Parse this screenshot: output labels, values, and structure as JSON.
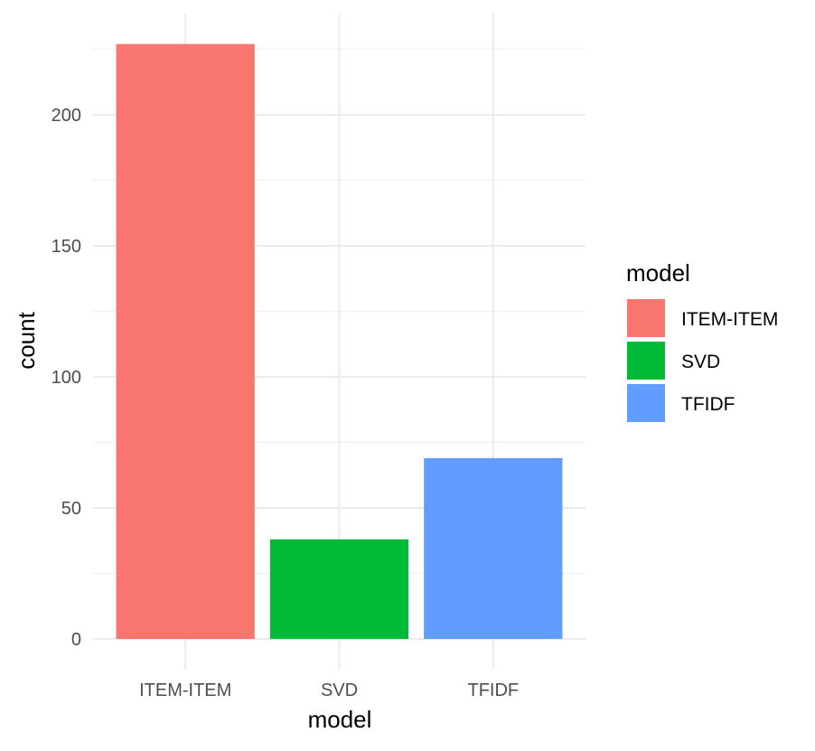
{
  "chart_data": {
    "type": "bar",
    "categories": [
      "ITEM-ITEM",
      "SVD",
      "TFIDF"
    ],
    "values": [
      227,
      38,
      69
    ],
    "xlabel": "model",
    "ylabel": "count",
    "ylim": [
      0,
      227
    ],
    "yticks": [
      0,
      50,
      100,
      150,
      200
    ],
    "grid": true,
    "legend": {
      "title": "model",
      "placement": "right",
      "entries": [
        "ITEM-ITEM",
        "SVD",
        "TFIDF"
      ]
    },
    "colors": [
      "#F8766D",
      "#00BA38",
      "#619CFF"
    ]
  }
}
